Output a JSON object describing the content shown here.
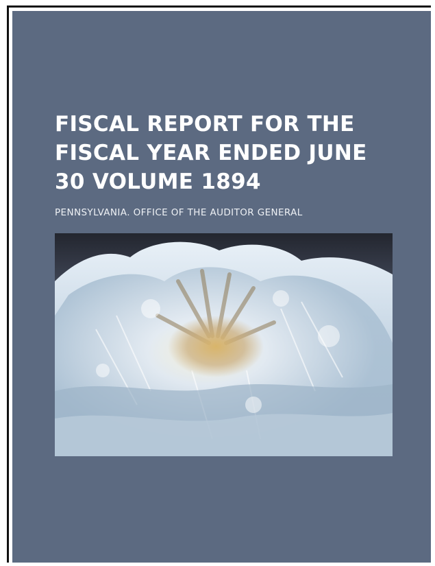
{
  "book": {
    "title_lines": [
      "FISCAL REPORT FOR THE",
      "FISCAL YEAR ENDED JUNE",
      "30 VOLUME 1894"
    ],
    "author": "PENNSYLVANIA. OFFICE OF THE AUDITOR GENERAL"
  },
  "colors": {
    "cover_background": "#5c6a81",
    "title_text": "#ffffff",
    "border": "#111111"
  },
  "image": {
    "subject": "crystal-mineral-photo"
  }
}
